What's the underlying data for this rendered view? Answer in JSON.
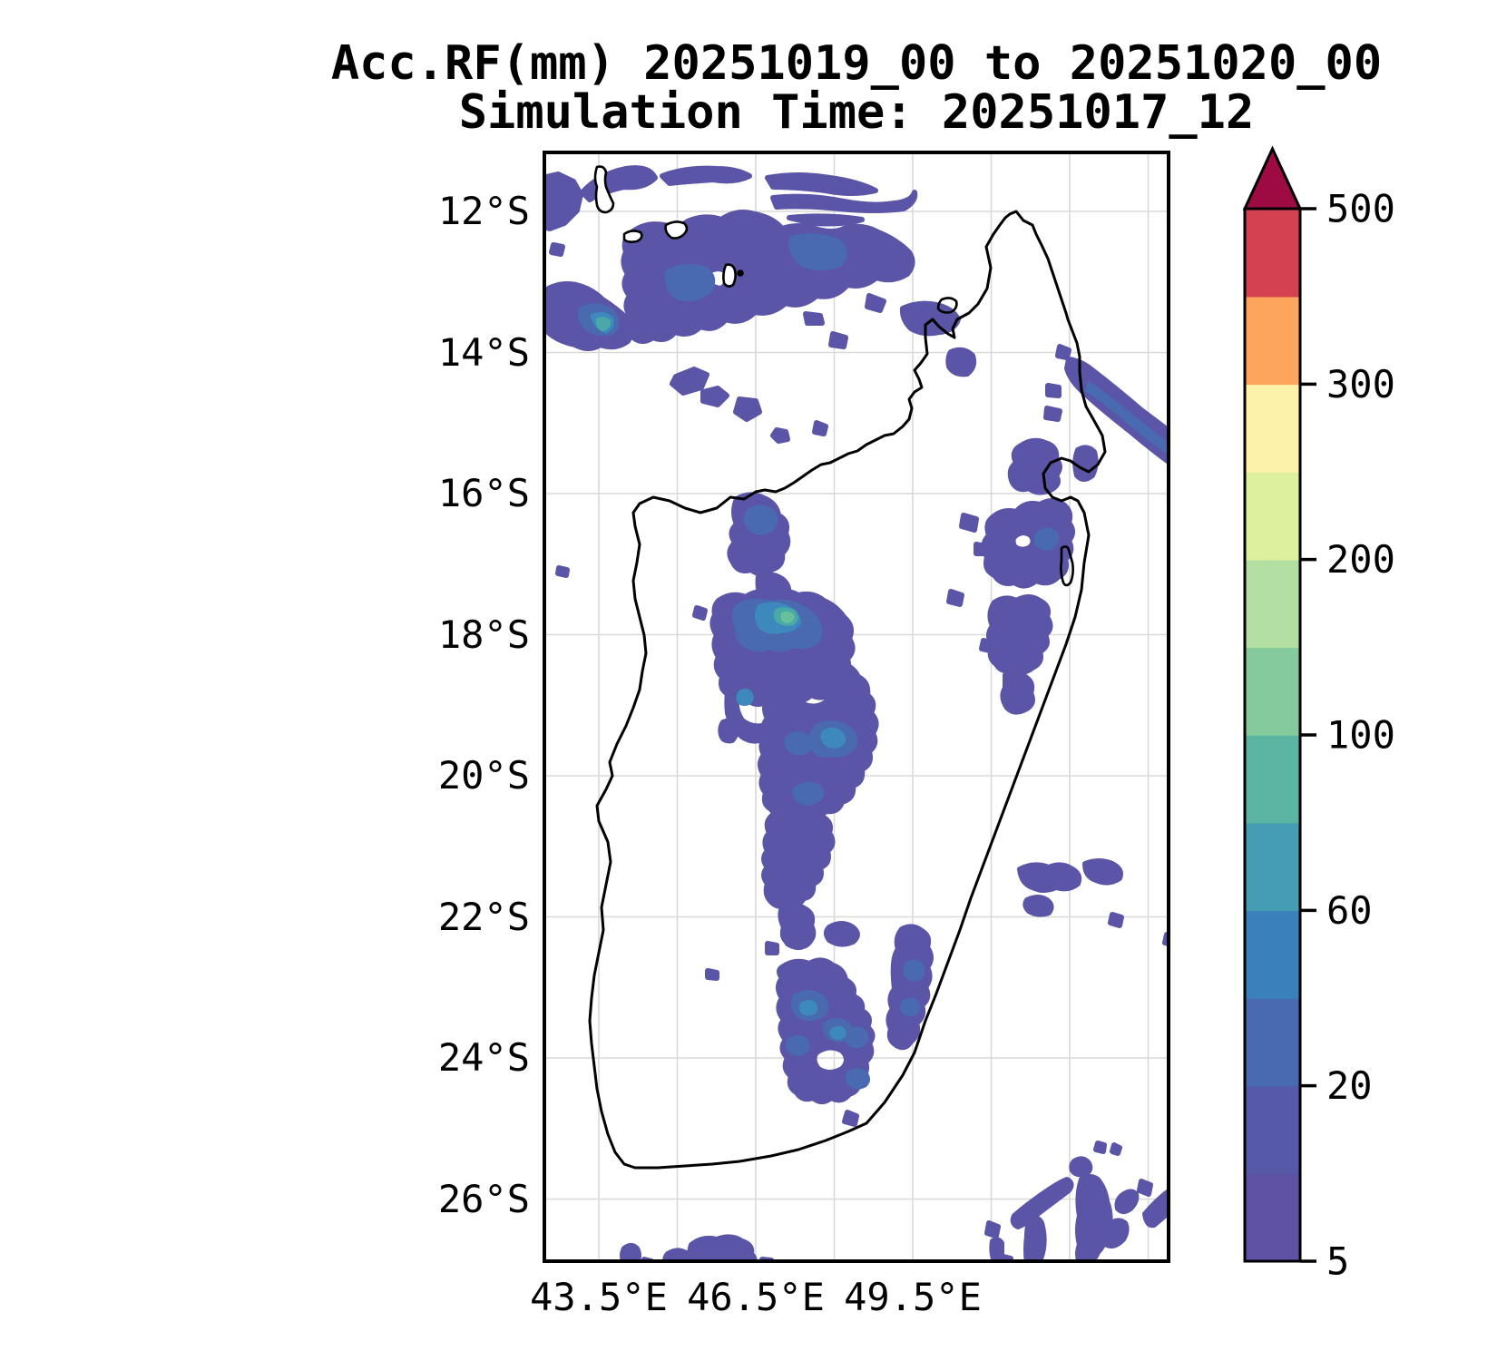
{
  "title": {
    "line1": "Acc.RF(mm) 20251019_00 to 20251020_00",
    "line2": "Simulation Time: 20251017_12"
  },
  "map": {
    "region_label": "Madagascar and surrounding ocean",
    "field_label": "Accumulated rainfall (mm)",
    "lat_ticks": [
      {
        "label": "12°S",
        "deg": 12
      },
      {
        "label": "14°S",
        "deg": 14
      },
      {
        "label": "16°S",
        "deg": 16
      },
      {
        "label": "18°S",
        "deg": 18
      },
      {
        "label": "20°S",
        "deg": 20
      },
      {
        "label": "22°S",
        "deg": 22
      },
      {
        "label": "24°S",
        "deg": 24
      },
      {
        "label": "26°S",
        "deg": 26
      }
    ],
    "lon_ticks": [
      {
        "label": "43.5°E",
        "deg": 43.5
      },
      {
        "label": "46.5°E",
        "deg": 46.5
      },
      {
        "label": "49.5°E",
        "deg": 49.5
      }
    ],
    "grid": {
      "lat_line_degs": [
        12,
        14,
        16,
        18,
        20,
        22,
        24,
        26
      ],
      "lon_line_degs": [
        43.5,
        45,
        46.5,
        48,
        49.5,
        51,
        52.5,
        54
      ],
      "grid_color": "#d9d9d9"
    }
  },
  "colorbar": {
    "unit": "mm",
    "levels": [
      5,
      10,
      20,
      40,
      60,
      80,
      100,
      150,
      200,
      250,
      300,
      400,
      500
    ],
    "segment_colors": [
      "#5f51a3",
      "#5659a8",
      "#4a6ab0",
      "#3a80ba",
      "#449cb5",
      "#5cb4a3",
      "#83cb9c",
      "#b4dfa3",
      "#ddf09e",
      "#fdf2a9",
      "#fca55c",
      "#d44150"
    ],
    "over_color": "#9d0b42",
    "tick_labels": [
      "5",
      "20",
      "60",
      "100",
      "200",
      "300",
      "500"
    ],
    "tick_values": [
      5,
      20,
      60,
      100,
      200,
      300,
      500
    ]
  },
  "rain_colors": {
    "level_5_20": "#5a55a6",
    "level_20_40": "#4a6ab0",
    "level_40_60": "#3d88bc",
    "level_60_80": "#48a9a6",
    "level_80_100": "#67bf9b"
  }
}
